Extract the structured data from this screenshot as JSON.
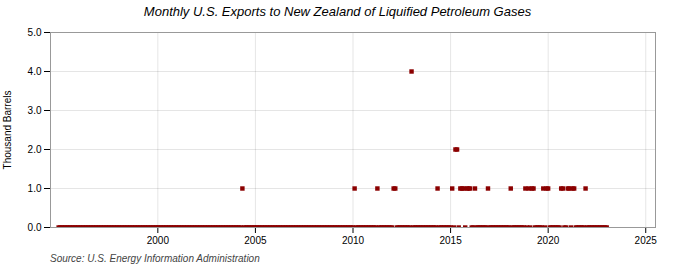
{
  "chart_data": {
    "type": "scatter",
    "title": "Monthly U.S. Exports to New Zealand of Liquified Petroleum Gases",
    "ylabel": "Thousand Barrels",
    "annotations": [
      "Source: U.S. Energy Information Administration"
    ],
    "xlim": [
      1994.5,
      2025.5
    ],
    "xticks": [
      2000,
      2005,
      2010,
      2015,
      2020,
      2025
    ],
    "ylim": [
      0.0,
      5.0
    ],
    "yticks": [
      {
        "value": 0.0,
        "label": "0.0"
      },
      {
        "value": 1.0,
        "label": "1.0"
      },
      {
        "value": 2.0,
        "label": "2.0"
      },
      {
        "value": 3.0,
        "label": "3.0"
      },
      {
        "value": 4.0,
        "label": "4.0"
      },
      {
        "value": 5.0,
        "label": "5.0"
      }
    ],
    "grid": true,
    "color": "#8b0000",
    "marker": "square",
    "x": [
      1994.917,
      1995.0,
      1995.083,
      1995.167,
      1995.25,
      1995.333,
      1995.417,
      1995.5,
      1995.583,
      1995.667,
      1995.75,
      1995.833,
      1995.917,
      1996.0,
      1996.083,
      1996.167,
      1996.25,
      1996.333,
      1996.417,
      1996.5,
      1996.583,
      1996.667,
      1996.75,
      1996.833,
      1996.917,
      1997.0,
      1997.083,
      1997.167,
      1997.25,
      1997.333,
      1997.417,
      1997.5,
      1997.583,
      1997.667,
      1997.75,
      1997.833,
      1997.917,
      1998.0,
      1998.083,
      1998.167,
      1998.25,
      1998.333,
      1998.417,
      1998.5,
      1998.583,
      1998.667,
      1998.75,
      1998.833,
      1998.917,
      1999.0,
      1999.083,
      1999.167,
      1999.25,
      1999.333,
      1999.417,
      1999.5,
      1999.583,
      1999.667,
      1999.75,
      1999.833,
      1999.917,
      2000.0,
      2000.083,
      2000.167,
      2000.25,
      2000.333,
      2000.417,
      2000.5,
      2000.583,
      2000.667,
      2000.75,
      2000.833,
      2000.917,
      2001.0,
      2001.083,
      2001.167,
      2001.25,
      2001.333,
      2001.417,
      2001.5,
      2001.583,
      2001.667,
      2001.75,
      2001.833,
      2001.917,
      2002.0,
      2002.083,
      2002.167,
      2002.25,
      2002.333,
      2002.417,
      2002.5,
      2002.583,
      2002.667,
      2002.75,
      2002.833,
      2002.917,
      2003.0,
      2003.083,
      2003.167,
      2003.25,
      2003.333,
      2003.417,
      2003.5,
      2003.583,
      2003.667,
      2003.75,
      2003.833,
      2003.917,
      2004.0,
      2004.083,
      2004.167,
      2004.25,
      2004.333,
      2004.417,
      2004.5,
      2004.583,
      2004.667,
      2004.75,
      2004.833,
      2004.917,
      2005.0,
      2005.083,
      2005.167,
      2005.25,
      2005.333,
      2005.417,
      2005.5,
      2005.583,
      2005.667,
      2005.75,
      2005.833,
      2005.917,
      2006.0,
      2006.083,
      2006.167,
      2006.25,
      2006.333,
      2006.417,
      2006.5,
      2006.583,
      2006.667,
      2006.75,
      2006.833,
      2006.917,
      2007.0,
      2007.083,
      2007.167,
      2007.25,
      2007.333,
      2007.417,
      2007.5,
      2007.583,
      2007.667,
      2007.75,
      2007.833,
      2007.917,
      2008.0,
      2008.083,
      2008.167,
      2008.25,
      2008.333,
      2008.417,
      2008.5,
      2008.583,
      2008.667,
      2008.75,
      2008.833,
      2008.917,
      2009.0,
      2009.083,
      2009.167,
      2009.25,
      2009.333,
      2009.417,
      2009.5,
      2009.583,
      2009.667,
      2009.75,
      2009.833,
      2009.917,
      2010.0,
      2010.083,
      2010.167,
      2010.25,
      2010.333,
      2010.417,
      2010.5,
      2010.583,
      2010.667,
      2010.75,
      2010.833,
      2010.917,
      2011.0,
      2011.083,
      2011.167,
      2011.25,
      2011.333,
      2011.417,
      2011.5,
      2011.583,
      2011.667,
      2011.75,
      2011.833,
      2011.917,
      2012.0,
      2012.083,
      2012.167,
      2012.25,
      2012.333,
      2012.417,
      2012.5,
      2012.583,
      2012.667,
      2012.75,
      2012.833,
      2012.917,
      2013.0,
      2013.083,
      2013.167,
      2013.25,
      2013.333,
      2013.417,
      2013.5,
      2013.583,
      2013.667,
      2013.75,
      2013.833,
      2013.917,
      2014.0,
      2014.083,
      2014.167,
      2014.25,
      2014.333,
      2014.417,
      2014.5,
      2014.583,
      2014.667,
      2014.75,
      2014.833,
      2014.917,
      2015.0,
      2015.083,
      2015.167,
      2015.25,
      2015.333,
      2015.417,
      2015.5,
      2015.583,
      2015.667,
      2015.75,
      2015.833,
      2015.917,
      2016.0,
      2016.083,
      2016.167,
      2016.25,
      2016.333,
      2016.417,
      2016.5,
      2016.583,
      2016.667,
      2016.75,
      2016.833,
      2016.917,
      2017.0,
      2017.083,
      2017.167,
      2017.25,
      2017.333,
      2017.417,
      2017.5,
      2017.583,
      2017.667,
      2017.75,
      2017.833,
      2017.917,
      2018.0,
      2018.083,
      2018.167,
      2018.25,
      2018.333,
      2018.417,
      2018.5,
      2018.583,
      2018.667,
      2018.75,
      2018.833,
      2018.917,
      2019.0,
      2019.083,
      2019.167,
      2019.25,
      2019.333,
      2019.417,
      2019.5,
      2019.583,
      2019.667,
      2019.75,
      2019.833,
      2019.917,
      2020.0,
      2020.083,
      2020.167,
      2020.25,
      2020.333,
      2020.417,
      2020.5,
      2020.583,
      2020.667,
      2020.75,
      2020.833,
      2020.917,
      2021.0,
      2021.083,
      2021.167,
      2021.25,
      2021.333,
      2021.417,
      2021.5,
      2021.583,
      2021.667,
      2021.75,
      2021.833,
      2021.917,
      2022.0,
      2022.083,
      2022.167,
      2022.25,
      2022.333,
      2022.417,
      2022.5,
      2022.583,
      2022.667,
      2022.75,
      2022.833,
      2022.917,
      2023.0
    ],
    "values": [
      0,
      0,
      0,
      0,
      0,
      0,
      0,
      0,
      0,
      0,
      0,
      0,
      0,
      0,
      0,
      0,
      0,
      0,
      0,
      0,
      0,
      0,
      0,
      0,
      0,
      0,
      0,
      0,
      0,
      0,
      0,
      0,
      0,
      0,
      0,
      0,
      0,
      0,
      0,
      0,
      0,
      0,
      0,
      0,
      0,
      0,
      0,
      0,
      0,
      0,
      0,
      0,
      0,
      0,
      0,
      0,
      0,
      0,
      0,
      0,
      0,
      0,
      0,
      0,
      0,
      0,
      0,
      0,
      0,
      0,
      0,
      0,
      0,
      0,
      0,
      0,
      0,
      0,
      0,
      0,
      0,
      0,
      0,
      0,
      0,
      0,
      0,
      0,
      0,
      0,
      0,
      0,
      0,
      0,
      0,
      0,
      0,
      0,
      0,
      0,
      0,
      0,
      0,
      0,
      0,
      0,
      0,
      0,
      0,
      0,
      0,
      0,
      0,
      1,
      0,
      0,
      0,
      0,
      0,
      0,
      0,
      0,
      0,
      0,
      0,
      0,
      0,
      0,
      0,
      0,
      0,
      0,
      0,
      0,
      0,
      0,
      0,
      0,
      0,
      0,
      0,
      0,
      0,
      0,
      0,
      0,
      0,
      0,
      0,
      0,
      0,
      0,
      0,
      0,
      0,
      0,
      0,
      0,
      0,
      0,
      0,
      0,
      0,
      0,
      0,
      0,
      0,
      0,
      0,
      0,
      0,
      0,
      0,
      0,
      0,
      0,
      0,
      0,
      0,
      0,
      0,
      0,
      1,
      0,
      0,
      0,
      0,
      0,
      0,
      0,
      0,
      0,
      0,
      0,
      0,
      0,
      1,
      0,
      0,
      0,
      0,
      0,
      0,
      0,
      0,
      0,
      1,
      1,
      0,
      0,
      0,
      0,
      0,
      0,
      0,
      0,
      0,
      4,
      0,
      0,
      0,
      0,
      0,
      0,
      0,
      0,
      0,
      0,
      0,
      0,
      0,
      0,
      0,
      1,
      0,
      0,
      0,
      0,
      0,
      0,
      0,
      0,
      1,
      0,
      2,
      2,
      0,
      1,
      1,
      1,
      0,
      1,
      1,
      1,
      0,
      0,
      1,
      0,
      0,
      0,
      0,
      0,
      0,
      0,
      1,
      0,
      0,
      0,
      0,
      0,
      0,
      0,
      0,
      0,
      0,
      0,
      0,
      0,
      1,
      0,
      0,
      0,
      0,
      0,
      0,
      0,
      0,
      1,
      0,
      1,
      0,
      1,
      1,
      0,
      0,
      0,
      0,
      0,
      1,
      0,
      1,
      1,
      0,
      0,
      0,
      0,
      0,
      0,
      0,
      1,
      1,
      0,
      0,
      1,
      1,
      0,
      1,
      1,
      0,
      0,
      0,
      0,
      0,
      0,
      1,
      0,
      0,
      0,
      0,
      0,
      0,
      0,
      0,
      0,
      0,
      0,
      0,
      0
    ]
  }
}
